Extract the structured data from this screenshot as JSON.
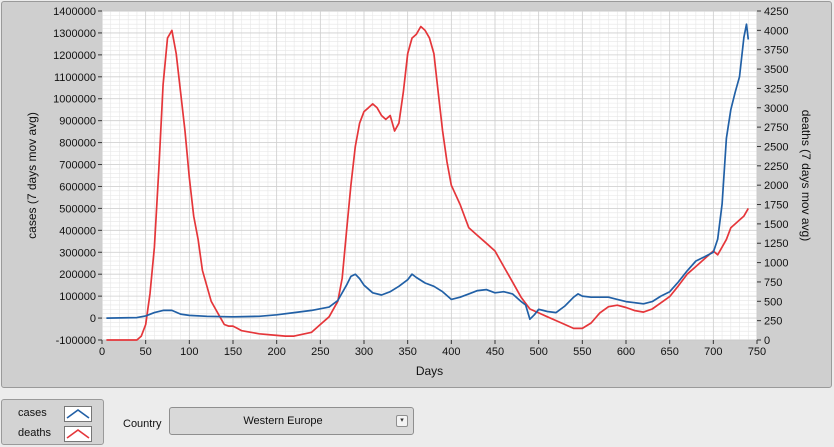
{
  "chart_data": {
    "type": "line",
    "xlabel": "Days",
    "ylabel_left": "cases  (7 days mov avg)",
    "ylabel_right": "deaths  (7 days mov avg)",
    "xlim": [
      0,
      750
    ],
    "ylim_left": [
      -100000,
      1400000
    ],
    "ylim_right": [
      0,
      4250
    ],
    "x_ticks": [
      0,
      50,
      100,
      150,
      200,
      250,
      300,
      350,
      400,
      450,
      500,
      550,
      600,
      650,
      700,
      750
    ],
    "y_ticks_left": [
      -100000,
      0,
      100000,
      200000,
      300000,
      400000,
      500000,
      600000,
      700000,
      800000,
      900000,
      1000000,
      1100000,
      1200000,
      1300000,
      1400000
    ],
    "y_ticks_right": [
      0,
      250,
      500,
      750,
      1000,
      1250,
      1500,
      1750,
      2000,
      2250,
      2500,
      2750,
      3000,
      3250,
      3500,
      3750,
      4000,
      4250
    ],
    "grid": true,
    "series": [
      {
        "name": "cases",
        "axis": "left",
        "color": "#2160a6",
        "x": [
          5,
          40,
          50,
          60,
          70,
          80,
          90,
          100,
          120,
          150,
          180,
          200,
          220,
          240,
          260,
          270,
          280,
          285,
          290,
          295,
          300,
          310,
          320,
          330,
          340,
          350,
          355,
          360,
          370,
          380,
          390,
          400,
          410,
          420,
          430,
          440,
          450,
          460,
          470,
          480,
          485,
          490,
          495,
          500,
          510,
          520,
          530,
          540,
          545,
          550,
          560,
          580,
          590,
          600,
          610,
          620,
          630,
          640,
          650,
          660,
          670,
          680,
          690,
          700,
          705,
          710,
          715,
          720,
          725,
          730,
          735,
          738,
          740
        ],
        "y": [
          0,
          2000,
          10000,
          25000,
          35000,
          35000,
          18000,
          12000,
          8000,
          6000,
          8000,
          15000,
          25000,
          35000,
          50000,
          80000,
          150000,
          190000,
          200000,
          180000,
          150000,
          115000,
          105000,
          120000,
          145000,
          175000,
          200000,
          185000,
          160000,
          145000,
          120000,
          85000,
          95000,
          110000,
          125000,
          130000,
          115000,
          120000,
          110000,
          75000,
          60000,
          -5000,
          15000,
          40000,
          30000,
          25000,
          55000,
          95000,
          110000,
          100000,
          95000,
          95000,
          85000,
          75000,
          70000,
          65000,
          75000,
          100000,
          120000,
          165000,
          215000,
          260000,
          280000,
          300000,
          360000,
          520000,
          820000,
          950000,
          1030000,
          1100000,
          1280000,
          1340000,
          1270000
        ]
      },
      {
        "name": "deaths",
        "axis": "right",
        "color": "#e5363a",
        "x": [
          5,
          40,
          45,
          50,
          55,
          60,
          65,
          70,
          75,
          80,
          85,
          90,
          95,
          100,
          105,
          110,
          115,
          120,
          125,
          130,
          135,
          140,
          145,
          150,
          155,
          160,
          180,
          200,
          210,
          220,
          240,
          250,
          260,
          270,
          275,
          280,
          285,
          290,
          295,
          300,
          305,
          310,
          315,
          320,
          325,
          330,
          335,
          340,
          345,
          350,
          355,
          360,
          365,
          370,
          375,
          380,
          385,
          390,
          395,
          400,
          410,
          420,
          430,
          440,
          450,
          460,
          470,
          480,
          490,
          500,
          510,
          520,
          530,
          540,
          550,
          560,
          570,
          580,
          590,
          600,
          610,
          620,
          630,
          640,
          650,
          660,
          670,
          680,
          690,
          700,
          705,
          710,
          715,
          720,
          725,
          730,
          735,
          740
        ],
        "y": [
          0,
          0,
          50,
          200,
          600,
          1200,
          2200,
          3300,
          3900,
          4000,
          3700,
          3200,
          2700,
          2100,
          1600,
          1300,
          900,
          700,
          500,
          400,
          300,
          200,
          180,
          180,
          150,
          120,
          80,
          60,
          50,
          50,
          100,
          200,
          300,
          500,
          800,
          1400,
          2000,
          2500,
          2800,
          2950,
          3000,
          3050,
          3000,
          2900,
          2850,
          2900,
          2700,
          2800,
          3200,
          3700,
          3900,
          3950,
          4050,
          4000,
          3900,
          3700,
          3200,
          2700,
          2300,
          2000,
          1750,
          1450,
          1350,
          1250,
          1150,
          950,
          750,
          550,
          400,
          350,
          300,
          250,
          200,
          150,
          150,
          220,
          350,
          430,
          450,
          420,
          380,
          360,
          400,
          480,
          560,
          700,
          850,
          950,
          1050,
          1150,
          1100,
          1200,
          1300,
          1450,
          1500,
          1550,
          1600,
          1700
        ]
      }
    ]
  },
  "controls": {
    "legend": [
      {
        "label": "cases",
        "color": "#2160a6"
      },
      {
        "label": "deaths",
        "color": "#e5363a"
      }
    ],
    "country_label": "Country",
    "country_value": "Western Europe"
  }
}
